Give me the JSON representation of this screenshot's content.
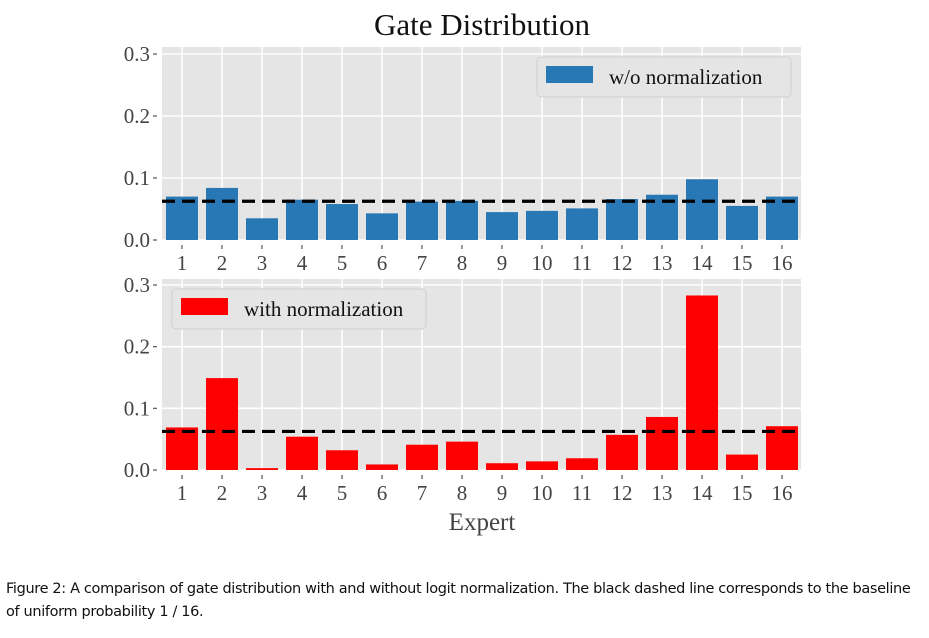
{
  "chart_data": [
    {
      "type": "bar",
      "panel": "top",
      "title": "Gate Distribution",
      "xlabel": "",
      "ylabel": "",
      "categories": [
        "1",
        "2",
        "3",
        "4",
        "5",
        "6",
        "7",
        "8",
        "9",
        "10",
        "11",
        "12",
        "13",
        "14",
        "15",
        "16"
      ],
      "series": [
        {
          "name": "w/o normalization",
          "color": "#2878b5",
          "values": [
            0.07,
            0.084,
            0.035,
            0.065,
            0.058,
            0.043,
            0.062,
            0.063,
            0.045,
            0.047,
            0.051,
            0.066,
            0.073,
            0.098,
            0.055,
            0.07
          ]
        }
      ],
      "baseline": {
        "value": 0.0625,
        "style": "dashed",
        "color": "#000000"
      },
      "ylim": [
        0,
        0.3
      ],
      "yticks": [
        "0.0",
        "0.1",
        "0.2",
        "0.3"
      ],
      "ytick_values": [
        0.0,
        0.1,
        0.2,
        0.3
      ],
      "grid": true,
      "legend": {
        "placement": "top-right",
        "entries": [
          "w/o normalization"
        ]
      },
      "background": "#e5e5e5"
    },
    {
      "type": "bar",
      "panel": "bottom",
      "title": "",
      "xlabel": "Expert",
      "ylabel": "",
      "categories": [
        "1",
        "2",
        "3",
        "4",
        "5",
        "6",
        "7",
        "8",
        "9",
        "10",
        "11",
        "12",
        "13",
        "14",
        "15",
        "16"
      ],
      "series": [
        {
          "name": "with normalization",
          "color": "#ff0000",
          "values": [
            0.069,
            0.149,
            0.003,
            0.054,
            0.032,
            0.009,
            0.041,
            0.046,
            0.011,
            0.014,
            0.019,
            0.057,
            0.086,
            0.283,
            0.025,
            0.071
          ]
        }
      ],
      "baseline": {
        "value": 0.0625,
        "style": "dashed",
        "color": "#000000"
      },
      "ylim": [
        0,
        0.3
      ],
      "yticks": [
        "0.0",
        "0.1",
        "0.2",
        "0.3"
      ],
      "ytick_values": [
        0.0,
        0.1,
        0.2,
        0.3
      ],
      "grid": true,
      "legend": {
        "placement": "top-left",
        "entries": [
          "with normalization"
        ]
      },
      "background": "#e5e5e5"
    }
  ],
  "figure": {
    "title": "Gate Distribution",
    "xlabel": "Expert"
  },
  "caption": "Figure 2: A comparison of gate distribution with and without logit normalization. The black dashed line corresponds to the baseline of uniform probability 1 / 16."
}
